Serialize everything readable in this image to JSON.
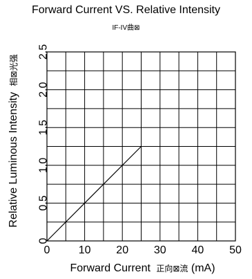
{
  "chart_data": {
    "type": "line",
    "title": "Forward Current VS. Relative Intensity",
    "subtitle": "IF-IV曲⊠",
    "xlabel": "Forward Current",
    "xlabel_cjk": "正向⊠流",
    "xlabel_unit": "(mA)",
    "ylabel": "Relative Luminous Intensity",
    "ylabel_cjk": "相⊠光强",
    "xlim": [
      0,
      50
    ],
    "ylim": [
      0,
      2.5
    ],
    "x_ticks": [
      0,
      10,
      20,
      30,
      40,
      50
    ],
    "x_tick_labels": [
      "0",
      "10",
      "20",
      "30",
      "40",
      "50"
    ],
    "y_ticks": [
      0,
      0.5,
      1.0,
      1.5,
      2.0,
      2.5
    ],
    "y_tick_labels": [
      "0",
      "0.5",
      "1.0",
      "1.5",
      "2.0",
      "2.5"
    ],
    "grid": true,
    "x_grid_step": 5,
    "y_grid_step": 0.25,
    "series": [
      {
        "x": [
          0,
          25
        ],
        "y": [
          0,
          1.25
        ]
      }
    ]
  }
}
